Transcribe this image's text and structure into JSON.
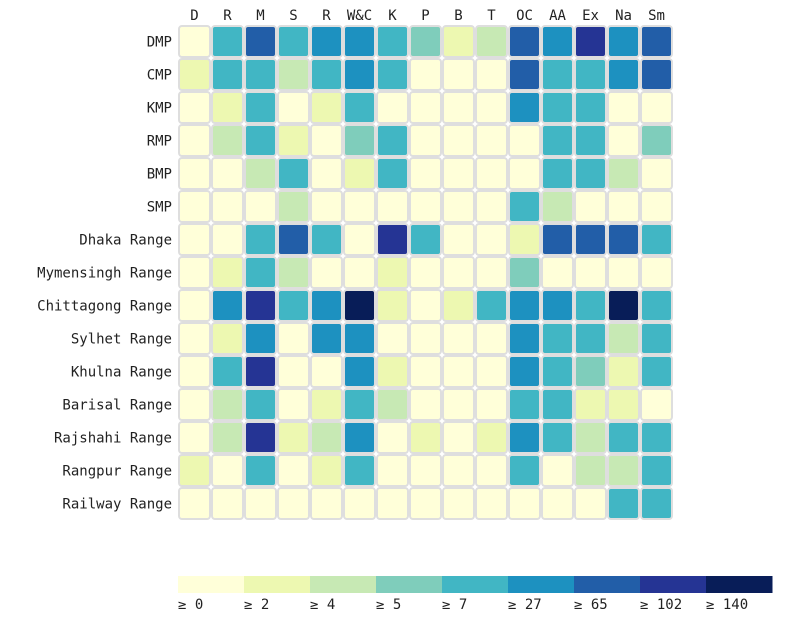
{
  "chart_data": {
    "type": "heatmap",
    "title": "",
    "xlabel": "",
    "ylabel": "",
    "columns": [
      "D",
      "R",
      "M",
      "S",
      "R",
      "W&C",
      "K",
      "P",
      "B",
      "T",
      "OC",
      "AA",
      "Ex",
      "Na",
      "Sm"
    ],
    "rows": [
      "DMP",
      "CMP",
      "KMP",
      "RMP",
      "BMP",
      "SMP",
      "Dhaka Range",
      "Mymensingh Range",
      "Chittagong Range",
      "Sylhet Range",
      "Khulna Range",
      "Barisal Range",
      "Rajshahi Range",
      "Rangpur Range",
      "Railway Range"
    ],
    "bins": [
      {
        "label": "≥ 0",
        "threshold": 0,
        "color": "#ffffd9"
      },
      {
        "label": "≥ 2",
        "threshold": 2,
        "color": "#edf8b1"
      },
      {
        "label": "≥ 4",
        "threshold": 4,
        "color": "#c7e9b4"
      },
      {
        "label": "≥ 5",
        "threshold": 5,
        "color": "#7fcdbb"
      },
      {
        "label": "≥ 7",
        "threshold": 7,
        "color": "#41b6c4"
      },
      {
        "label": "≥ 27",
        "threshold": 27,
        "color": "#1d91c0"
      },
      {
        "label": "≥ 65",
        "threshold": 65,
        "color": "#225ea8"
      },
      {
        "label": "≥ 102",
        "threshold": 102,
        "color": "#253494"
      },
      {
        "label": "≥ 140",
        "threshold": 140,
        "color": "#081d58"
      }
    ],
    "matrix_bins": [
      [
        0,
        4,
        6,
        4,
        5,
        5,
        4,
        3,
        1,
        2,
        6,
        5,
        7,
        5,
        6
      ],
      [
        1,
        4,
        4,
        2,
        4,
        5,
        4,
        0,
        0,
        0,
        6,
        4,
        4,
        5,
        6
      ],
      [
        0,
        1,
        4,
        0,
        1,
        4,
        0,
        0,
        0,
        0,
        5,
        4,
        4,
        0,
        0
      ],
      [
        0,
        2,
        4,
        1,
        0,
        3,
        4,
        0,
        0,
        0,
        0,
        4,
        4,
        0,
        3
      ],
      [
        0,
        0,
        2,
        4,
        0,
        1,
        4,
        0,
        0,
        0,
        0,
        4,
        4,
        2,
        0
      ],
      [
        0,
        0,
        0,
        2,
        0,
        0,
        0,
        0,
        0,
        0,
        4,
        2,
        0,
        0,
        0
      ],
      [
        0,
        0,
        4,
        6,
        4,
        0,
        7,
        4,
        0,
        0,
        1,
        6,
        6,
        6,
        4
      ],
      [
        0,
        1,
        4,
        2,
        0,
        0,
        1,
        0,
        0,
        0,
        3,
        0,
        0,
        0,
        0
      ],
      [
        0,
        5,
        7,
        4,
        5,
        8,
        1,
        0,
        1,
        4,
        5,
        5,
        4,
        8,
        4
      ],
      [
        0,
        1,
        5,
        0,
        5,
        5,
        0,
        0,
        0,
        0,
        5,
        4,
        4,
        2,
        4
      ],
      [
        0,
        4,
        7,
        0,
        0,
        5,
        1,
        0,
        0,
        0,
        5,
        4,
        3,
        1,
        4
      ],
      [
        0,
        2,
        4,
        0,
        1,
        4,
        2,
        0,
        0,
        0,
        4,
        4,
        1,
        1,
        0
      ],
      [
        0,
        2,
        7,
        1,
        2,
        5,
        0,
        1,
        0,
        1,
        5,
        4,
        2,
        4,
        4
      ],
      [
        1,
        0,
        4,
        0,
        1,
        4,
        0,
        0,
        0,
        0,
        4,
        0,
        2,
        2,
        4
      ],
      [
        0,
        0,
        0,
        0,
        0,
        0,
        0,
        0,
        0,
        0,
        0,
        0,
        0,
        4,
        4
      ]
    ],
    "grid": false,
    "legend": "bottom"
  }
}
